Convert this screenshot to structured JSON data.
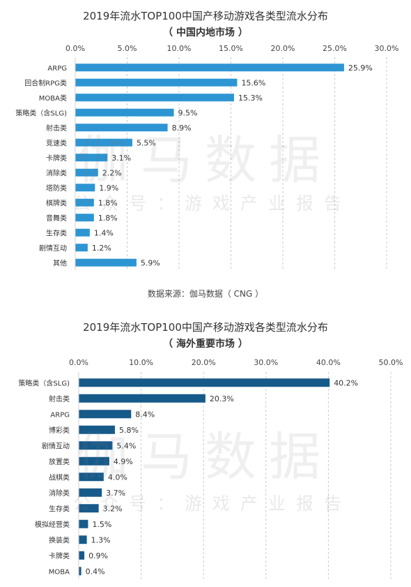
{
  "charts": [
    {
      "title": "2019年流水TOP100中国产移动游戏各类型流水分布",
      "subtitle": "（ 中国内地市场 ）",
      "source": "数据来源：伽马数据（ CNG ）",
      "watermark": {
        "main": "伽马数据",
        "sub": "公众号：游戏产业报告"
      }
    },
    {
      "title": "2019年流水TOP100中国产移动游戏各类型流水分布",
      "subtitle": "（ 海外重要市场 ）",
      "watermark": {
        "main": "伽马数据",
        "sub": "公众号：游戏产业报告"
      }
    }
  ],
  "chart_data": [
    {
      "type": "bar",
      "orientation": "horizontal",
      "title": "2019年流水TOP100中国产移动游戏各类型流水分布",
      "subtitle": "（ 中国内地市场 ）",
      "categories": [
        "ARPG",
        "回合制RPG类",
        "MOBA类",
        "策略类（含SLG)",
        "射击类",
        "竞速类",
        "卡牌类",
        "消除类",
        "塔防类",
        "棋牌类",
        "音舞类",
        "生存类",
        "剧情互动",
        "其他"
      ],
      "values": [
        25.9,
        15.6,
        15.3,
        9.5,
        8.9,
        5.5,
        3.1,
        2.2,
        1.9,
        1.8,
        1.8,
        1.4,
        1.2,
        5.9
      ],
      "value_labels": [
        "25.9%",
        "15.6%",
        "15.3%",
        "9.5%",
        "8.9%",
        "5.5%",
        "3.1%",
        "2.2%",
        "1.9%",
        "1.8%",
        "1.8%",
        "1.4%",
        "1.2%",
        "5.9%"
      ],
      "xlim": [
        0,
        30
      ],
      "xticks": [
        "0.0%",
        "5.0%",
        "10.0%",
        "15.0%",
        "20.0%",
        "25.0%",
        "30.0%"
      ],
      "axis_position": "top",
      "grid": "vertical dashed",
      "color": "#2e95d3"
    },
    {
      "type": "bar",
      "orientation": "horizontal",
      "title": "2019年流水TOP100中国产移动游戏各类型流水分布",
      "subtitle": "（ 海外重要市场 ）",
      "categories": [
        "策略类（含SLG)",
        "射击类",
        "ARPG",
        "博彩类",
        "剧情互动",
        "放置类",
        "战棋类",
        "消除类",
        "生存类",
        "模拟经营类",
        "换装类",
        "卡牌类",
        "MOBA"
      ],
      "values": [
        40.2,
        20.3,
        8.4,
        5.8,
        5.4,
        4.9,
        4.0,
        3.7,
        3.2,
        1.5,
        1.3,
        0.9,
        0.4
      ],
      "value_labels": [
        "40.2%",
        "20.3%",
        "8.4%",
        "5.8%",
        "5.4%",
        "4.9%",
        "4.0%",
        "3.7%",
        "3.2%",
        "1.5%",
        "1.3%",
        "0.9%",
        "0.4%"
      ],
      "xlim": [
        0,
        50
      ],
      "xticks": [
        "0.0%",
        "10.0%",
        "20.0%",
        "30.0%",
        "40.0%",
        "50.0%"
      ],
      "axis_position": "top",
      "grid": "vertical dashed",
      "color": "#165a8a"
    }
  ]
}
